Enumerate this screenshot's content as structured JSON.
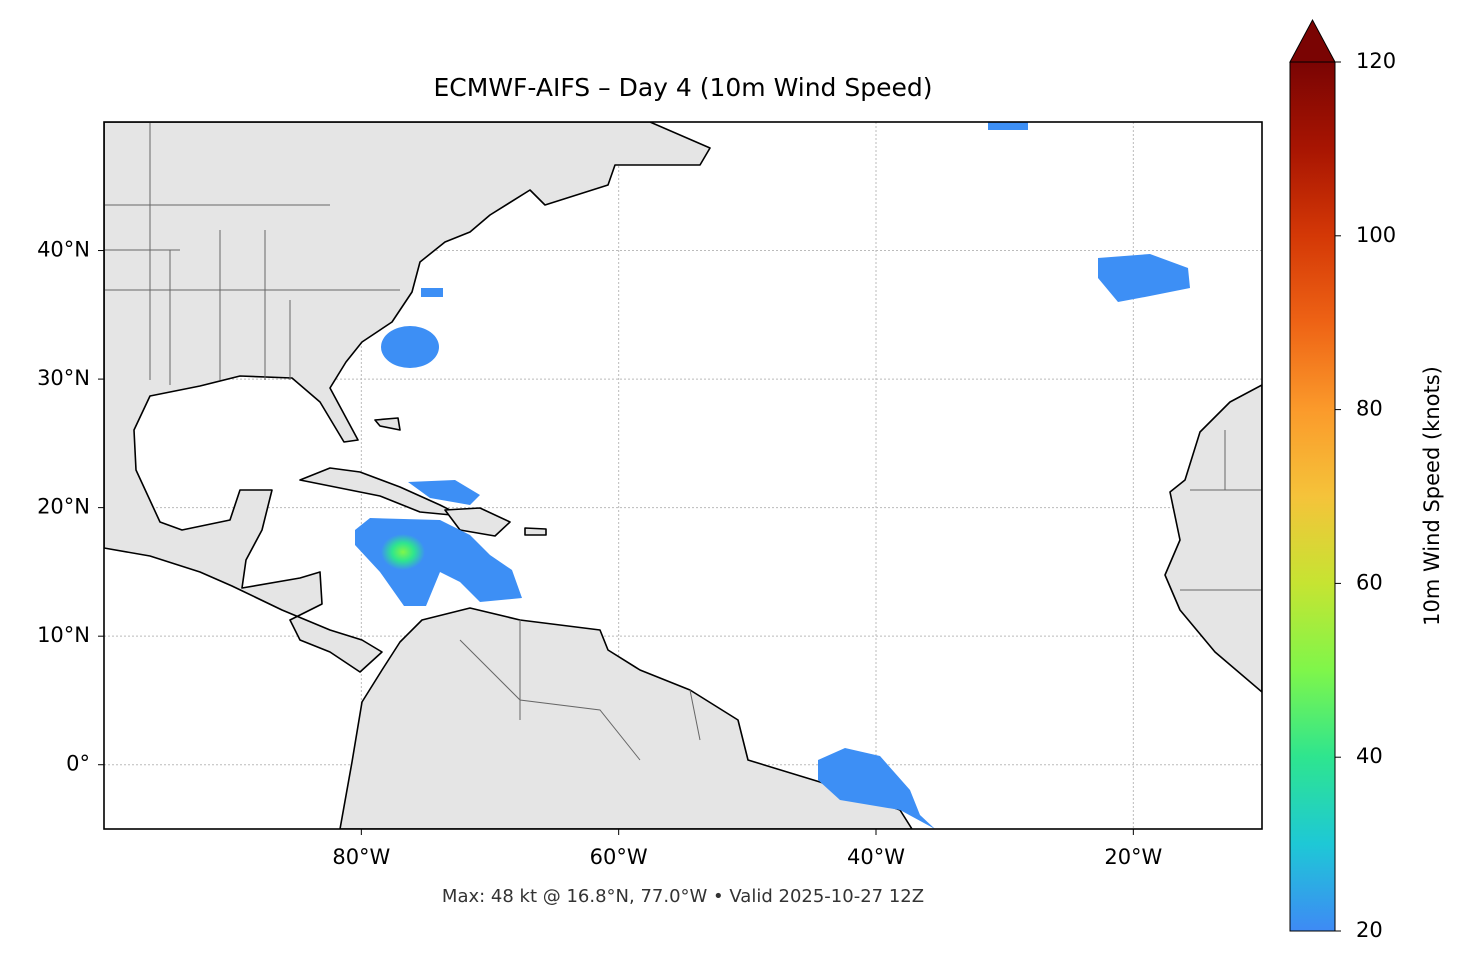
{
  "chart_data": {
    "type": "map",
    "title": "ECMWF-AIFS – Day 4 (10m Wind Speed)",
    "annotation": "Max: 48 kt @ 16.8°N, 77.0°W • Valid 2025-10-27 12Z",
    "xlim": [
      -100,
      -10
    ],
    "ylim": [
      -5,
      50
    ],
    "xticks": [
      {
        "value": -80,
        "label": "80°W"
      },
      {
        "value": -60,
        "label": "60°W"
      },
      {
        "value": -40,
        "label": "40°W"
      },
      {
        "value": -20,
        "label": "20°W"
      }
    ],
    "yticks": [
      {
        "value": 0,
        "label": "0°"
      },
      {
        "value": 10,
        "label": "10°N"
      },
      {
        "value": 20,
        "label": "20°N"
      },
      {
        "value": 30,
        "label": "30°N"
      },
      {
        "value": 40,
        "label": "40°N"
      }
    ],
    "grid": true,
    "colorbar": {
      "label": "10m Wind Speed (knots)",
      "lim": [
        20,
        120
      ],
      "ticks": [
        20,
        40,
        60,
        80,
        100,
        120
      ],
      "colors": [
        "#3e8af5",
        "#1ec8d6",
        "#2ee58f",
        "#7ff64a",
        "#c6e432",
        "#f5c33a",
        "#fb9a2b",
        "#ee6315",
        "#d43806",
        "#a81502",
        "#7a0403"
      ]
    }
  }
}
